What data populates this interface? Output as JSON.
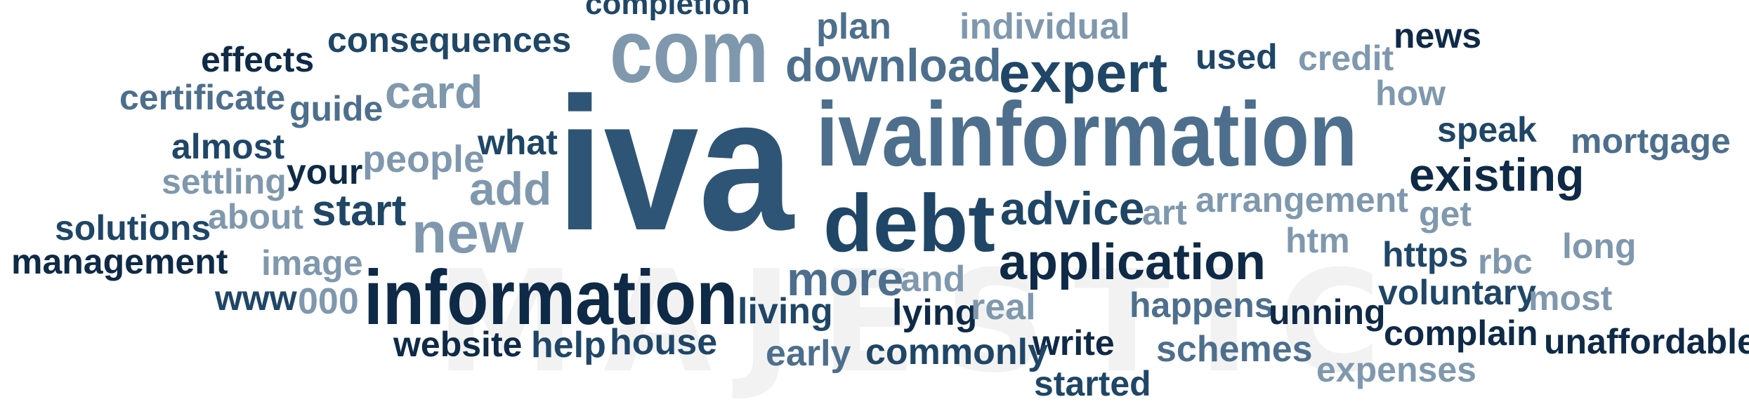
{
  "watermark_text": "MAJESTIC",
  "palette": {
    "navy": "#0e2a47",
    "dark": "#1f4666",
    "steel": "#2f5576",
    "mid": "#4d6f8d",
    "light": "#7f98ae"
  },
  "words": [
    {
      "text": "completion",
      "color": "dark"
    },
    {
      "text": "com",
      "color": "light"
    },
    {
      "text": "plan",
      "color": "mid"
    },
    {
      "text": "individual",
      "color": "light"
    },
    {
      "text": "news",
      "color": "navy"
    },
    {
      "text": "consequences",
      "color": "dark"
    },
    {
      "text": "effects",
      "color": "navy"
    },
    {
      "text": "download",
      "color": "mid"
    },
    {
      "text": "expert",
      "color": "dark"
    },
    {
      "text": "used",
      "color": "dark"
    },
    {
      "text": "credit",
      "color": "light"
    },
    {
      "text": "certificate",
      "color": "mid"
    },
    {
      "text": "card",
      "color": "light"
    },
    {
      "text": "guide",
      "color": "mid"
    },
    {
      "text": "how",
      "color": "light"
    },
    {
      "text": "iva",
      "color": "steel"
    },
    {
      "text": "ivainformation",
      "color": "mid"
    },
    {
      "text": "speak",
      "color": "dark"
    },
    {
      "text": "mortgage",
      "color": "mid"
    },
    {
      "text": "almost",
      "color": "dark"
    },
    {
      "text": "what",
      "color": "dark"
    },
    {
      "text": "people",
      "color": "light"
    },
    {
      "text": "settling",
      "color": "light"
    },
    {
      "text": "your",
      "color": "navy"
    },
    {
      "text": "add",
      "color": "light"
    },
    {
      "text": "existing",
      "color": "navy"
    },
    {
      "text": "about",
      "color": "light"
    },
    {
      "text": "start",
      "color": "dark"
    },
    {
      "text": "debt",
      "color": "dark"
    },
    {
      "text": "advice",
      "color": "dark"
    },
    {
      "text": "art",
      "color": "light"
    },
    {
      "text": "arrangement",
      "color": "light"
    },
    {
      "text": "get",
      "color": "light"
    },
    {
      "text": "solutions",
      "color": "dark"
    },
    {
      "text": "new",
      "color": "light"
    },
    {
      "text": "htm",
      "color": "light"
    },
    {
      "text": "https",
      "color": "dark"
    },
    {
      "text": "long",
      "color": "light"
    },
    {
      "text": "management",
      "color": "navy"
    },
    {
      "text": "image",
      "color": "light"
    },
    {
      "text": "rbc",
      "color": "light"
    },
    {
      "text": "application",
      "color": "navy"
    },
    {
      "text": "more",
      "color": "mid"
    },
    {
      "text": "and",
      "color": "light"
    },
    {
      "text": "information",
      "color": "navy"
    },
    {
      "text": "www",
      "color": "dark"
    },
    {
      "text": "000",
      "color": "light"
    },
    {
      "text": "voluntary",
      "color": "dark"
    },
    {
      "text": "most",
      "color": "light"
    },
    {
      "text": "living",
      "color": "dark"
    },
    {
      "text": "lying",
      "color": "navy"
    },
    {
      "text": "real",
      "color": "light"
    },
    {
      "text": "happens",
      "color": "mid"
    },
    {
      "text": "unning",
      "color": "navy"
    },
    {
      "text": "complain",
      "color": "navy"
    },
    {
      "text": "unaffordable",
      "color": "navy"
    },
    {
      "text": "website",
      "color": "navy"
    },
    {
      "text": "help",
      "color": "dark"
    },
    {
      "text": "house",
      "color": "dark"
    },
    {
      "text": "write",
      "color": "navy"
    },
    {
      "text": "early",
      "color": "mid"
    },
    {
      "text": "commonly",
      "color": "dark"
    },
    {
      "text": "schemes",
      "color": "mid"
    },
    {
      "text": "expenses",
      "color": "light"
    },
    {
      "text": "started",
      "color": "dark"
    }
  ]
}
